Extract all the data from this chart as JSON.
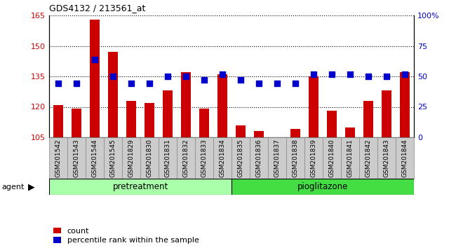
{
  "title": "GDS4132 / 213561_at",
  "samples": [
    "GSM201542",
    "GSM201543",
    "GSM201544",
    "GSM201545",
    "GSM201829",
    "GSM201830",
    "GSM201831",
    "GSM201832",
    "GSM201833",
    "GSM201834",
    "GSM201835",
    "GSM201836",
    "GSM201837",
    "GSM201838",
    "GSM201839",
    "GSM201840",
    "GSM201841",
    "GSM201842",
    "GSM201843",
    "GSM201844"
  ],
  "counts": [
    121,
    119,
    163,
    147,
    123,
    122,
    128,
    137,
    119,
    136,
    111,
    108,
    105,
    109,
    135,
    118,
    110,
    123,
    128,
    137
  ],
  "percentiles": [
    44,
    44,
    64,
    50,
    44,
    44,
    50,
    50,
    47,
    52,
    47,
    44,
    44,
    44,
    52,
    52,
    52,
    50,
    50,
    52
  ],
  "ylim_left": [
    105,
    165
  ],
  "ylim_right": [
    0,
    100
  ],
  "yticks_left": [
    105,
    120,
    135,
    150,
    165
  ],
  "yticks_right": [
    0,
    25,
    50,
    75,
    100
  ],
  "ytick_labels_right": [
    "0",
    "25",
    "50",
    "75",
    "100%"
  ],
  "bar_color": "#cc0000",
  "dot_color": "#0000cc",
  "agent_label": "agent",
  "groups": [
    {
      "label": "pretreatment",
      "start": 0,
      "end": 10,
      "color": "#aaffaa"
    },
    {
      "label": "pioglitazone",
      "start": 10,
      "end": 20,
      "color": "#44dd44"
    }
  ],
  "legend_count_label": "count",
  "legend_pct_label": "percentile rank within the sample",
  "bar_width": 0.55,
  "dot_size": 40,
  "n_samples": 20,
  "pretreat_n": 10,
  "pioglit_n": 10
}
